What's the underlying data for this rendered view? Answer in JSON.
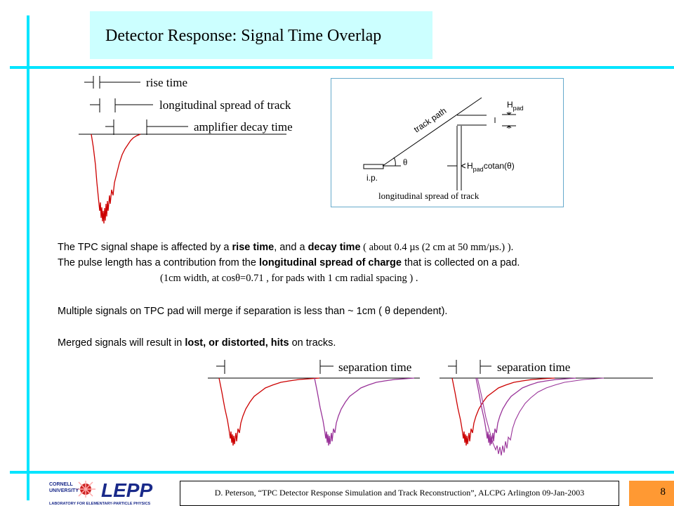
{
  "slide": {
    "title": "Detector Response: Signal Time Overlap",
    "page_number": "8",
    "footer": "D. Peterson, “TPC Detector Response Simulation and Track Reconstruction”, ALCPG Arlington 09-Jan-2003"
  },
  "colors": {
    "accent_cyan": "#00e5ff",
    "title_bg": "#ccffff",
    "page_bg": "#ff9933",
    "signal_red": "#cc0000",
    "signal_purple": "#993399"
  },
  "logo": {
    "small_top": "CORNELL",
    "small_bottom": "UNIVERSITY",
    "name": "LEPP",
    "tagline": "LABORATORY FOR ELEMENTARY-PARTICLE PHYSICS"
  },
  "figure_top_left": {
    "labels": [
      "rise time",
      "longitudinal spread of track",
      "amplifier decay time"
    ]
  },
  "figure_geometry": {
    "track_path": "track path",
    "h_pad": "H",
    "h_pad_sub": "pad",
    "h_pad_cot_prefix": "H",
    "h_pad_cot_suffix": "cotan(θ)",
    "theta": "θ",
    "ip": "i.p.",
    "caption": "longitudinal spread of track"
  },
  "body": {
    "line1_a": "The TPC signal shape is affected by a ",
    "line1_b": "rise time",
    "line1_c": ", and a ",
    "line1_d": "decay time",
    "line1_e": "  ( about 0.4 µs (2 cm at 50 mm/µs.) ).",
    "line2_a": "The pulse length has a contribution from the ",
    "line2_b": "longitudinal spread of charge",
    "line2_c": " that is collected on a pad.",
    "line3": "(1cm width, at cosθ=0.71 ,  for pads with 1 cm radial spacing ) .",
    "line4": "Multiple signals on TPC pad will merge if separation is less than ~ 1cm  ( θ  dependent).",
    "line5_a": "Merged signals will result in ",
    "line5_b": "lost, or distorted, hits",
    "line5_c": " on tracks."
  },
  "figure_bottom": {
    "label_left": "separation time",
    "label_right": "separation time"
  }
}
